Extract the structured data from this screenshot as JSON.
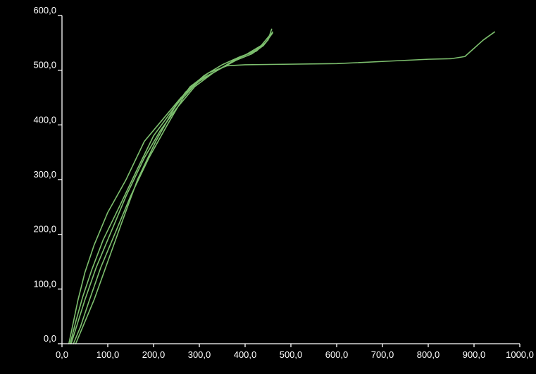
{
  "chart_data": {
    "type": "line",
    "title": "",
    "xlabel": "",
    "ylabel": "",
    "xlim": [
      0,
      1000
    ],
    "ylim": [
      0,
      600
    ],
    "x_ticks": [
      0,
      100,
      200,
      300,
      400,
      500,
      600,
      700,
      800,
      900,
      1000
    ],
    "y_ticks": [
      0,
      100,
      200,
      300,
      400,
      500,
      600
    ],
    "x_tick_labels": [
      "0,0",
      "100,0",
      "200,0",
      "300,0",
      "400,0",
      "500,0",
      "600,0",
      "700,0",
      "800,0",
      "900,0",
      "1000,0"
    ],
    "y_tick_labels": [
      "0,0",
      "100,0",
      "200,0",
      "300,0",
      "400,0",
      "500,0",
      "600,0"
    ],
    "grid": false,
    "legend": "none",
    "colors": {
      "background": "#000000",
      "axis": "#ffffff",
      "series": "#7dbf6e"
    },
    "series": [
      {
        "points": [
          [
            15,
            0
          ],
          [
            25,
            40
          ],
          [
            35,
            80
          ],
          [
            50,
            130
          ],
          [
            70,
            180
          ],
          [
            100,
            240
          ],
          [
            140,
            300
          ],
          [
            180,
            370
          ],
          [
            220,
            410
          ],
          [
            260,
            450
          ],
          [
            300,
            480
          ],
          [
            340,
            500
          ],
          [
            380,
            520
          ],
          [
            420,
            535
          ],
          [
            445,
            550
          ],
          [
            460,
            570
          ]
        ]
      },
      {
        "points": [
          [
            18,
            0
          ],
          [
            30,
            40
          ],
          [
            45,
            85
          ],
          [
            65,
            135
          ],
          [
            90,
            190
          ],
          [
            125,
            250
          ],
          [
            165,
            320
          ],
          [
            200,
            380
          ],
          [
            235,
            420
          ],
          [
            270,
            460
          ],
          [
            310,
            490
          ],
          [
            350,
            510
          ],
          [
            390,
            525
          ],
          [
            425,
            535
          ],
          [
            450,
            555
          ],
          [
            458,
            575
          ]
        ]
      },
      {
        "points": [
          [
            20,
            0
          ],
          [
            35,
            40
          ],
          [
            50,
            80
          ],
          [
            75,
            140
          ],
          [
            105,
            200
          ],
          [
            140,
            270
          ],
          [
            180,
            340
          ],
          [
            215,
            390
          ],
          [
            250,
            430
          ],
          [
            290,
            470
          ],
          [
            330,
            495
          ],
          [
            370,
            515
          ],
          [
            405,
            530
          ],
          [
            435,
            545
          ],
          [
            455,
            565
          ]
        ]
      },
      {
        "points": [
          [
            25,
            0
          ],
          [
            40,
            30
          ],
          [
            60,
            80
          ],
          [
            85,
            140
          ],
          [
            115,
            200
          ],
          [
            150,
            270
          ],
          [
            190,
            340
          ],
          [
            230,
            400
          ],
          [
            265,
            450
          ],
          [
            300,
            482
          ],
          [
            340,
            500
          ],
          [
            380,
            518
          ],
          [
            415,
            530
          ],
          [
            440,
            545
          ],
          [
            460,
            568
          ]
        ]
      },
      {
        "points": [
          [
            30,
            0
          ],
          [
            45,
            30
          ],
          [
            70,
            80
          ],
          [
            100,
            150
          ],
          [
            130,
            220
          ],
          [
            165,
            300
          ],
          [
            205,
            370
          ],
          [
            245,
            430
          ],
          [
            280,
            470
          ],
          [
            320,
            495
          ],
          [
            360,
            508
          ],
          [
            400,
            510
          ],
          [
            500,
            511
          ],
          [
            600,
            512
          ],
          [
            700,
            516
          ],
          [
            800,
            520
          ],
          [
            850,
            521
          ],
          [
            880,
            525
          ],
          [
            900,
            540
          ],
          [
            920,
            555
          ],
          [
            945,
            570
          ]
        ]
      }
    ]
  }
}
